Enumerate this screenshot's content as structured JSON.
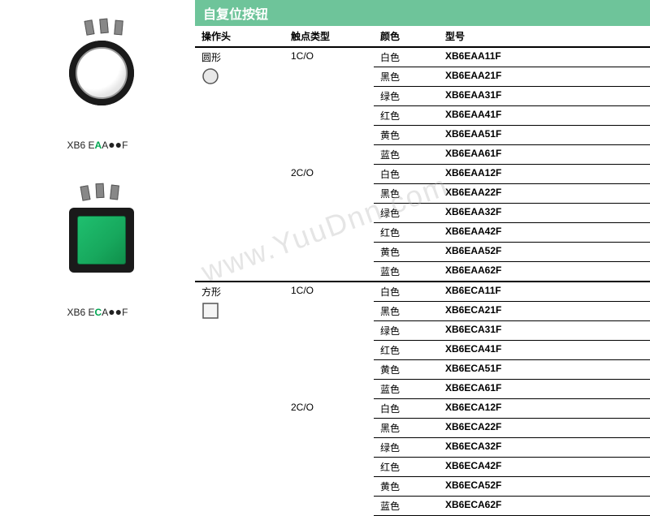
{
  "watermark": "www.YuuDnn.com",
  "title": "自复位按钮",
  "columns": {
    "head": "操作头",
    "contact": "触点类型",
    "color": "颜色",
    "model": "型号"
  },
  "products": [
    {
      "label_prefix": "XB6 E",
      "label_green": "A",
      "label_mid": "A",
      "label_dots": "●●",
      "label_suffix": "F"
    },
    {
      "label_prefix": "XB6 E",
      "label_green": "C",
      "label_mid": "A",
      "label_dots": "●●",
      "label_suffix": "F"
    }
  ],
  "sections": [
    {
      "head_label": "圆形",
      "shape_icon": {
        "type": "circle",
        "stroke": "#555555",
        "fill": "#e8e8e8"
      },
      "groups": [
        {
          "contact": "1C/O",
          "rows": [
            {
              "color": "白色",
              "model": "XB6EAA11F"
            },
            {
              "color": "黑色",
              "model": "XB6EAA21F"
            },
            {
              "color": "绿色",
              "model": "XB6EAA31F"
            },
            {
              "color": "红色",
              "model": "XB6EAA41F"
            },
            {
              "color": "黄色",
              "model": "XB6EAA51F"
            },
            {
              "color": "蓝色",
              "model": "XB6EAA61F"
            }
          ]
        },
        {
          "contact": "2C/O",
          "rows": [
            {
              "color": "白色",
              "model": "XB6EAA12F"
            },
            {
              "color": "黑色",
              "model": "XB6EAA22F"
            },
            {
              "color": "绿色",
              "model": "XB6EAA32F"
            },
            {
              "color": "红色",
              "model": "XB6EAA42F"
            },
            {
              "color": "黄色",
              "model": "XB6EAA52F"
            },
            {
              "color": "蓝色",
              "model": "XB6EAA62F"
            }
          ]
        }
      ]
    },
    {
      "head_label": "方形",
      "shape_icon": {
        "type": "square",
        "stroke": "#555555",
        "fill": "#f5f5f5"
      },
      "groups": [
        {
          "contact": "1C/O",
          "rows": [
            {
              "color": "白色",
              "model": "XB6ECA11F"
            },
            {
              "color": "黑色",
              "model": "XB6ECA21F"
            },
            {
              "color": "绿色",
              "model": "XB6ECA31F"
            },
            {
              "color": "红色",
              "model": "XB6ECA41F"
            },
            {
              "color": "黄色",
              "model": "XB6ECA51F"
            },
            {
              "color": "蓝色",
              "model": "XB6ECA61F"
            }
          ]
        },
        {
          "contact": "2C/O",
          "rows": [
            {
              "color": "白色",
              "model": "XB6ECA12F"
            },
            {
              "color": "黑色",
              "model": "XB6ECA22F"
            },
            {
              "color": "绿色",
              "model": "XB6ECA32F"
            },
            {
              "color": "红色",
              "model": "XB6ECA42F"
            },
            {
              "color": "黄色",
              "model": "XB6ECA52F"
            },
            {
              "color": "蓝色",
              "model": "XB6ECA62F"
            }
          ]
        }
      ]
    }
  ],
  "style": {
    "title_bg": "#6ec49a",
    "title_color": "#ffffff",
    "border_color": "#000000",
    "accent_green": "#00a651",
    "background": "#ffffff",
    "font_size_body": 12,
    "font_size_title": 16
  }
}
